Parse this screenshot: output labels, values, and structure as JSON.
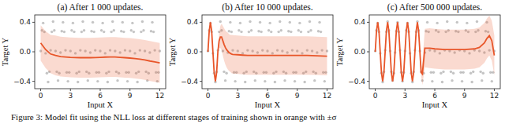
{
  "caption": "Figure 3: Model fit using the NLL loss at different stages of training shown in orange with ±σ",
  "chart_data": [
    {
      "type": "scatter",
      "title": "(a) After 1 000 updates.",
      "x_label": "Input X",
      "y_label": "Target Y",
      "xlim": [
        -0.6,
        12.6
      ],
      "ylim": [
        -0.5,
        0.5
      ],
      "xticks": [
        0,
        3,
        6,
        9,
        12
      ],
      "yticks": [
        {
          "value": -0.4,
          "label": "−0.4"
        },
        {
          "value": 0,
          "label": "0.0"
        },
        {
          "value": 0.4,
          "label": "0.4"
        }
      ],
      "grid": false,
      "series": [
        {
          "type": "scatter",
          "color": "#555555",
          "marker": "circle",
          "x": [
            0,
            0.125,
            0.25,
            0.375,
            0.5,
            0.625,
            0.75,
            0.875,
            1,
            1.125,
            1.25,
            1.375,
            1.5,
            1.625,
            1.75,
            1.875,
            2,
            2.125,
            2.25,
            2.375,
            2.5,
            2.625,
            2.75,
            2.875,
            3,
            3.125,
            3.25,
            3.375,
            3.5,
            3.625,
            3.75,
            3.875,
            4,
            4.125,
            4.25,
            4.375,
            4.5,
            4.625,
            4.75,
            4.875,
            5,
            5.125,
            5.25,
            5.375,
            5.5,
            5.625,
            5.75,
            5.875,
            6,
            6.125,
            6.25,
            6.375,
            6.5,
            6.625,
            6.75,
            6.875,
            7,
            7.125,
            7.25,
            7.375,
            7.5,
            7.625,
            7.75,
            7.875,
            8,
            8.125,
            8.25,
            8.375,
            8.5,
            8.625,
            8.75,
            8.875,
            9,
            9.125,
            9.25,
            9.375,
            9.5,
            9.625,
            9.75,
            9.875,
            10,
            10.125,
            10.25,
            10.375,
            10.5,
            10.625,
            10.75,
            10.875,
            11,
            11.125,
            11.25,
            11.375,
            11.5,
            11.625,
            11.75,
            11.875,
            12
          ],
          "values": [
            0.01,
            0.29,
            0.39,
            0.27,
            -0.02,
            -0.29,
            -0.41,
            -0.27,
            0.02,
            0.27,
            0.41,
            0.29,
            0.01,
            -0.27,
            -0.39,
            -0.29,
            -0.01,
            0.28,
            0.4,
            0.27,
            0.02,
            -0.28,
            -0.4,
            -0.28,
            0.01,
            0.29,
            0.39,
            0.27,
            -0.02,
            -0.29,
            -0.41,
            -0.27,
            0.02,
            0.27,
            0.41,
            0.29,
            0.01,
            -0.27,
            -0.39,
            -0.29,
            -0.01,
            0.28,
            0.4,
            0.27,
            0.02,
            -0.28,
            -0.4,
            -0.28,
            0.01,
            0.29,
            0.39,
            0.27,
            -0.02,
            -0.29,
            -0.41,
            -0.27,
            0.02,
            0.27,
            0.41,
            0.29,
            0.01,
            -0.27,
            -0.39,
            -0.29,
            -0.01,
            0.28,
            0.4,
            0.27,
            0.02,
            -0.28,
            -0.4,
            -0.28,
            0.01,
            0.29,
            0.39,
            0.27,
            -0.02,
            -0.29,
            -0.41,
            -0.27,
            0.02,
            0.27,
            0.41,
            0.29,
            0.01,
            -0.27,
            -0.39,
            -0.29,
            -0.01,
            0.28,
            0.4,
            0.27,
            0.02,
            -0.28,
            -0.4,
            -0.28,
            0.01
          ]
        },
        {
          "type": "line",
          "color": "#e8562a",
          "line_style": "solid",
          "x": [
            0,
            0.5,
            1,
            1.5,
            2,
            2.5,
            3,
            3.5,
            4,
            4.5,
            5,
            5.5,
            6,
            6.5,
            7,
            7.5,
            8,
            8.5,
            9,
            9.5,
            10,
            10.5,
            11,
            11.5,
            12
          ],
          "values": [
            0.12,
            0.03,
            -0.03,
            -0.05,
            -0.065,
            -0.07,
            -0.075,
            -0.078,
            -0.08,
            -0.08,
            -0.08,
            -0.078,
            -0.075,
            -0.072,
            -0.07,
            -0.07,
            -0.075,
            -0.08,
            -0.085,
            -0.092,
            -0.1,
            -0.11,
            -0.125,
            -0.137,
            -0.15
          ],
          "std": [
            0.24,
            0.25,
            0.26,
            0.27,
            0.27,
            0.27,
            0.27,
            0.27,
            0.27,
            0.27,
            0.27,
            0.27,
            0.27,
            0.27,
            0.27,
            0.27,
            0.27,
            0.27,
            0.27,
            0.27,
            0.27,
            0.27,
            0.27,
            0.27,
            0.27
          ]
        }
      ]
    },
    {
      "type": "scatter",
      "title": "(b) After 10 000 updates.",
      "x_label": "Input X",
      "y_label": "Target Y",
      "xlim": [
        -0.6,
        12.6
      ],
      "ylim": [
        -0.5,
        0.5
      ],
      "xticks": [
        0,
        3,
        6,
        9,
        12
      ],
      "yticks": [
        {
          "value": -0.4,
          "label": "−0.4"
        },
        {
          "value": 0,
          "label": "0.0"
        },
        {
          "value": 0.4,
          "label": "0.4"
        }
      ],
      "grid": false,
      "series": [
        {
          "type": "scatter",
          "color": "#555555",
          "marker": "circle",
          "x": [
            0,
            0.125,
            0.25,
            0.375,
            0.5,
            0.625,
            0.75,
            0.875,
            1,
            1.125,
            1.25,
            1.375,
            1.5,
            1.625,
            1.75,
            1.875,
            2,
            2.125,
            2.25,
            2.375,
            2.5,
            2.625,
            2.75,
            2.875,
            3,
            3.125,
            3.25,
            3.375,
            3.5,
            3.625,
            3.75,
            3.875,
            4,
            4.125,
            4.25,
            4.375,
            4.5,
            4.625,
            4.75,
            4.875,
            5,
            5.125,
            5.25,
            5.375,
            5.5,
            5.625,
            5.75,
            5.875,
            6,
            6.125,
            6.25,
            6.375,
            6.5,
            6.625,
            6.75,
            6.875,
            7,
            7.125,
            7.25,
            7.375,
            7.5,
            7.625,
            7.75,
            7.875,
            8,
            8.125,
            8.25,
            8.375,
            8.5,
            8.625,
            8.75,
            8.875,
            9,
            9.125,
            9.25,
            9.375,
            9.5,
            9.625,
            9.75,
            9.875,
            10,
            10.125,
            10.25,
            10.375,
            10.5,
            10.625,
            10.75,
            10.875,
            11,
            11.125,
            11.25,
            11.375,
            11.5,
            11.625,
            11.75,
            11.875,
            12
          ],
          "values": [
            0.01,
            0.29,
            0.39,
            0.27,
            -0.02,
            -0.29,
            -0.41,
            -0.27,
            0.02,
            0.27,
            0.41,
            0.29,
            0.01,
            -0.27,
            -0.39,
            -0.29,
            -0.01,
            0.28,
            0.4,
            0.27,
            0.02,
            -0.28,
            -0.4,
            -0.28,
            0.01,
            0.29,
            0.39,
            0.27,
            -0.02,
            -0.29,
            -0.41,
            -0.27,
            0.02,
            0.27,
            0.41,
            0.29,
            0.01,
            -0.27,
            -0.39,
            -0.29,
            -0.01,
            0.28,
            0.4,
            0.27,
            0.02,
            -0.28,
            -0.4,
            -0.28,
            0.01,
            0.29,
            0.39,
            0.27,
            -0.02,
            -0.29,
            -0.41,
            -0.27,
            0.02,
            0.27,
            0.41,
            0.29,
            0.01,
            -0.27,
            -0.39,
            -0.29,
            -0.01,
            0.28,
            0.4,
            0.27,
            0.02,
            -0.28,
            -0.4,
            -0.28,
            0.01,
            0.29,
            0.39,
            0.27,
            -0.02,
            -0.29,
            -0.41,
            -0.27,
            0.02,
            0.27,
            0.41,
            0.29,
            0.01,
            -0.27,
            -0.39,
            -0.29,
            -0.01,
            0.28,
            0.4,
            0.27,
            0.02,
            -0.28,
            -0.4,
            -0.28,
            0.01
          ]
        },
        {
          "type": "line",
          "color": "#e8562a",
          "line_style": "solid",
          "x": [
            0,
            0.125,
            0.25,
            0.375,
            0.5,
            0.625,
            0.75,
            0.875,
            1,
            1.125,
            1.25,
            1.375,
            1.5,
            1.625,
            1.75,
            1.875,
            2,
            2.125,
            2.25,
            2.375,
            2.5,
            3,
            3.5,
            4,
            5,
            6,
            7,
            8,
            9,
            10,
            11,
            12
          ],
          "values": [
            0,
            0.28,
            0.4,
            0.28,
            0,
            -0.28,
            -0.4,
            -0.28,
            0,
            0.15,
            0.2,
            0.2,
            0.15,
            0.1,
            0.06,
            0.03,
            0.01,
            -0.01,
            -0.02,
            -0.03,
            -0.035,
            -0.04,
            -0.045,
            -0.05,
            -0.05,
            -0.05,
            -0.05,
            -0.05,
            -0.05,
            -0.05,
            -0.055,
            -0.06
          ],
          "std": [
            0.03,
            0.03,
            0.03,
            0.03,
            0.03,
            0.03,
            0.03,
            0.03,
            0.03,
            0.1,
            0.15,
            0.18,
            0.2,
            0.22,
            0.23,
            0.24,
            0.25,
            0.25,
            0.25,
            0.26,
            0.26,
            0.26,
            0.26,
            0.26,
            0.26,
            0.26,
            0.26,
            0.26,
            0.26,
            0.26,
            0.26,
            0.26
          ]
        }
      ]
    },
    {
      "type": "scatter",
      "title": "(c) After 500 000 updates.",
      "x_label": "Input X",
      "y_label": "Target Y",
      "xlim": [
        -0.6,
        12.6
      ],
      "ylim": [
        -0.5,
        0.5
      ],
      "xticks": [
        0,
        3,
        6,
        9,
        12
      ],
      "yticks": [
        {
          "value": -0.4,
          "label": "−0.4"
        },
        {
          "value": 0,
          "label": "0.0"
        },
        {
          "value": 0.4,
          "label": "0.4"
        }
      ],
      "grid": false,
      "series": [
        {
          "type": "scatter",
          "color": "#555555",
          "marker": "circle",
          "x": [
            0,
            0.125,
            0.25,
            0.375,
            0.5,
            0.625,
            0.75,
            0.875,
            1,
            1.125,
            1.25,
            1.375,
            1.5,
            1.625,
            1.75,
            1.875,
            2,
            2.125,
            2.25,
            2.375,
            2.5,
            2.625,
            2.75,
            2.875,
            3,
            3.125,
            3.25,
            3.375,
            3.5,
            3.625,
            3.75,
            3.875,
            4,
            4.125,
            4.25,
            4.375,
            4.5,
            4.625,
            4.75,
            4.875,
            5,
            5.125,
            5.25,
            5.375,
            5.5,
            5.625,
            5.75,
            5.875,
            6,
            6.125,
            6.25,
            6.375,
            6.5,
            6.625,
            6.75,
            6.875,
            7,
            7.125,
            7.25,
            7.375,
            7.5,
            7.625,
            7.75,
            7.875,
            8,
            8.125,
            8.25,
            8.375,
            8.5,
            8.625,
            8.75,
            8.875,
            9,
            9.125,
            9.25,
            9.375,
            9.5,
            9.625,
            9.75,
            9.875,
            10,
            10.125,
            10.25,
            10.375,
            10.5,
            10.625,
            10.75,
            10.875,
            11,
            11.125,
            11.25,
            11.375,
            11.5,
            11.625,
            11.75,
            11.875,
            12
          ],
          "values": [
            0.01,
            0.29,
            0.39,
            0.27,
            -0.02,
            -0.29,
            -0.41,
            -0.27,
            0.02,
            0.27,
            0.41,
            0.29,
            0.01,
            -0.27,
            -0.39,
            -0.29,
            -0.01,
            0.28,
            0.4,
            0.27,
            0.02,
            -0.28,
            -0.4,
            -0.28,
            0.01,
            0.29,
            0.39,
            0.27,
            -0.02,
            -0.29,
            -0.41,
            -0.27,
            0.02,
            0.27,
            0.41,
            0.29,
            0.01,
            -0.27,
            -0.39,
            -0.29,
            -0.01,
            0.28,
            0.4,
            0.27,
            0.02,
            -0.28,
            -0.4,
            -0.28,
            0.01,
            0.29,
            0.39,
            0.27,
            -0.02,
            -0.29,
            -0.41,
            -0.27,
            0.02,
            0.27,
            0.41,
            0.29,
            0.01,
            -0.27,
            -0.39,
            -0.29,
            -0.01,
            0.28,
            0.4,
            0.27,
            0.02,
            -0.28,
            -0.4,
            -0.28,
            0.01,
            0.29,
            0.39,
            0.27,
            -0.02,
            -0.29,
            -0.41,
            -0.27,
            0.02,
            0.27,
            0.41,
            0.29,
            0.01,
            -0.27,
            -0.39,
            -0.29,
            -0.01,
            0.28,
            0.4,
            0.27,
            0.02,
            -0.28,
            -0.4,
            -0.28,
            0.01
          ]
        },
        {
          "type": "line",
          "color": "#e8562a",
          "line_style": "solid",
          "x": [
            0,
            0.125,
            0.25,
            0.375,
            0.5,
            0.625,
            0.75,
            0.875,
            1,
            1.125,
            1.25,
            1.375,
            1.5,
            1.625,
            1.75,
            1.875,
            2,
            2.125,
            2.25,
            2.375,
            2.5,
            2.625,
            2.75,
            2.875,
            3,
            3.125,
            3.25,
            3.375,
            3.5,
            3.625,
            3.75,
            3.875,
            4,
            4.125,
            4.25,
            4.375,
            4.5,
            4.625,
            4.75,
            5,
            5.5,
            6,
            7,
            8,
            9,
            10,
            10.5,
            11,
            11.25,
            11.5,
            11.75,
            12
          ],
          "values": [
            0,
            0.28,
            0.4,
            0.28,
            0,
            -0.28,
            -0.4,
            -0.28,
            0,
            0.28,
            0.4,
            0.28,
            0,
            -0.28,
            -0.4,
            -0.28,
            0,
            0.28,
            0.4,
            0.28,
            0,
            -0.28,
            -0.4,
            -0.28,
            0,
            0.28,
            0.4,
            0.28,
            0,
            -0.28,
            -0.4,
            -0.28,
            0,
            0.28,
            0.4,
            0.28,
            0,
            -0.28,
            -0.3,
            0.05,
            0.05,
            0.04,
            0.03,
            0.03,
            0.03,
            0.04,
            0.06,
            0.12,
            0.18,
            0.22,
            0.15,
            -0.05
          ],
          "std": [
            0.02,
            0.02,
            0.02,
            0.02,
            0.02,
            0.02,
            0.02,
            0.02,
            0.02,
            0.02,
            0.02,
            0.02,
            0.02,
            0.02,
            0.02,
            0.02,
            0.02,
            0.02,
            0.02,
            0.02,
            0.02,
            0.02,
            0.02,
            0.02,
            0.02,
            0.02,
            0.02,
            0.02,
            0.02,
            0.02,
            0.02,
            0.02,
            0.02,
            0.02,
            0.02,
            0.02,
            0.02,
            0.05,
            0.15,
            0.26,
            0.27,
            0.27,
            0.27,
            0.27,
            0.27,
            0.27,
            0.27,
            0.27,
            0.27,
            0.27,
            0.27,
            0.27
          ]
        }
      ]
    }
  ]
}
